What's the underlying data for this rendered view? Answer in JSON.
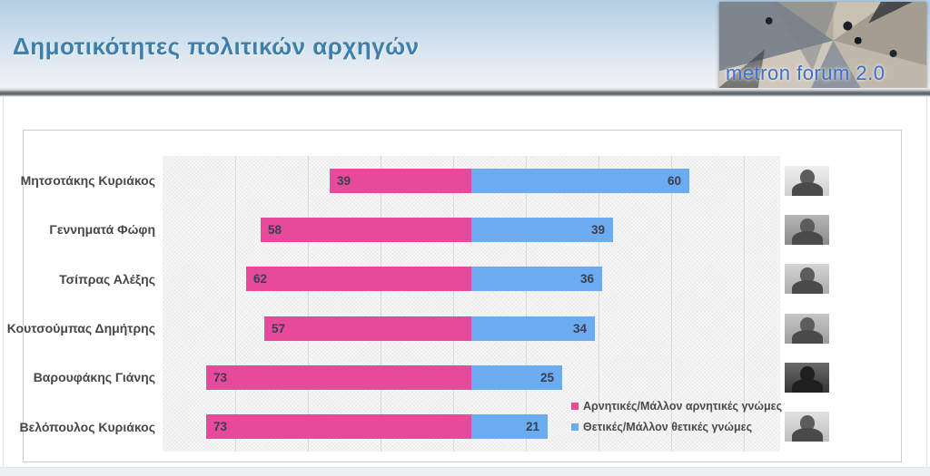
{
  "header": {
    "title": "Δημοτικότητες πολιτικών αρχηγών",
    "logo_text": "metron forum 2.0"
  },
  "colors": {
    "negative_bar": "#e84a9b",
    "positive_bar": "#6bacf1",
    "title_text": "#3e80ab",
    "logo_text": "#3f6ecb",
    "value_label": "#3a3e4e",
    "gridline": "#d9d9d9"
  },
  "chart_data": {
    "type": "bar",
    "orientation": "horizontal-diverging",
    "title": "Δημοτικότητες πολιτικών αρχηγών",
    "categories": [
      "Μητσοτάκης Κυριάκος",
      "Γεννηματά Φώφη",
      "Τσίπρας Αλέξης",
      "Κουτσούμπας Δημήτρης",
      "Βαρουφάκης Γιάνης",
      "Βελόπουλος Κυριάκος"
    ],
    "series": [
      {
        "name": "Αρνητικές/Μάλλον αρνητικές γνώμες",
        "direction": "left",
        "color": "#e84a9b",
        "values": [
          39,
          58,
          62,
          57,
          73,
          73
        ]
      },
      {
        "name": "Θετικές/Μάλλον θετικές γνώμες",
        "direction": "right",
        "color": "#6bacf1",
        "values": [
          60,
          39,
          36,
          34,
          25,
          21
        ]
      }
    ],
    "axis": {
      "min": -85,
      "max": 85,
      "gridline_step": 20
    },
    "grid": true,
    "legend_position": "inside-bottom-right",
    "row_photos": true
  }
}
